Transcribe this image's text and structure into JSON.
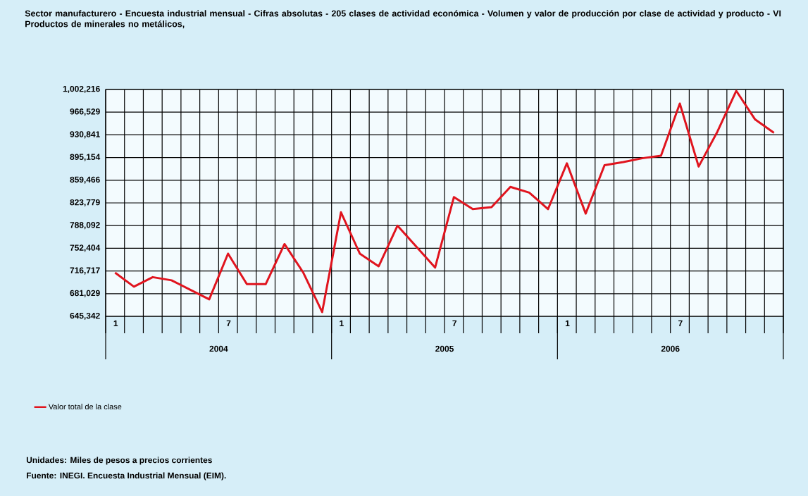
{
  "chart_data": {
    "type": "line",
    "title": "Sector manufacturero - Encuesta industrial mensual - Cifras absolutas - 205 clases de actividad económica - Volumen y valor de producción por clase de actividad y producto - VI   Productos de minerales no metálicos,",
    "categories": [
      "1",
      null,
      null,
      null,
      null,
      null,
      "7",
      null,
      null,
      null,
      null,
      null,
      "1",
      null,
      null,
      null,
      null,
      null,
      "7",
      null,
      null,
      null,
      null,
      null,
      "1",
      null,
      null,
      null,
      null,
      null,
      "7",
      null,
      null,
      null,
      null,
      null
    ],
    "series": [
      {
        "name": "Valor total de la clase",
        "color": "#e0141e",
        "values": [
          714000,
          692000,
          707000,
          702000,
          687000,
          672000,
          744000,
          696000,
          696000,
          759000,
          714000,
          652000,
          809000,
          744000,
          724000,
          788000,
          755000,
          722000,
          833000,
          814000,
          817000,
          849000,
          840000,
          814000,
          886000,
          807000,
          883000,
          888000,
          894000,
          898000,
          980000,
          881000,
          936000,
          1000000,
          955000,
          934000
        ]
      }
    ],
    "ylim": [
      645342,
      1002216
    ],
    "yticks": [
      {
        "value": 645342,
        "label": "645,342"
      },
      {
        "value": 681029,
        "label": "681,029"
      },
      {
        "value": 716717,
        "label": "716,717"
      },
      {
        "value": 752404,
        "label": "752,404"
      },
      {
        "value": 788092,
        "label": "788,092"
      },
      {
        "value": 823779,
        "label": "823,779"
      },
      {
        "value": 859466,
        "label": "859,466"
      },
      {
        "value": 895154,
        "label": "895,154"
      },
      {
        "value": 930841,
        "label": "930,841"
      },
      {
        "value": 966529,
        "label": "966,529"
      },
      {
        "value": 1002216,
        "label": "1,002,216"
      }
    ],
    "grid": true,
    "legend": "bottom left",
    "marker": "none",
    "line_style": "solid",
    "annotations": [
      "2004",
      "2005",
      "2006",
      "Unidades: Miles de pesos a precios corrientes",
      "Fuente: INEGI. Encuesta Industrial Mensual (EIM)."
    ]
  }
}
